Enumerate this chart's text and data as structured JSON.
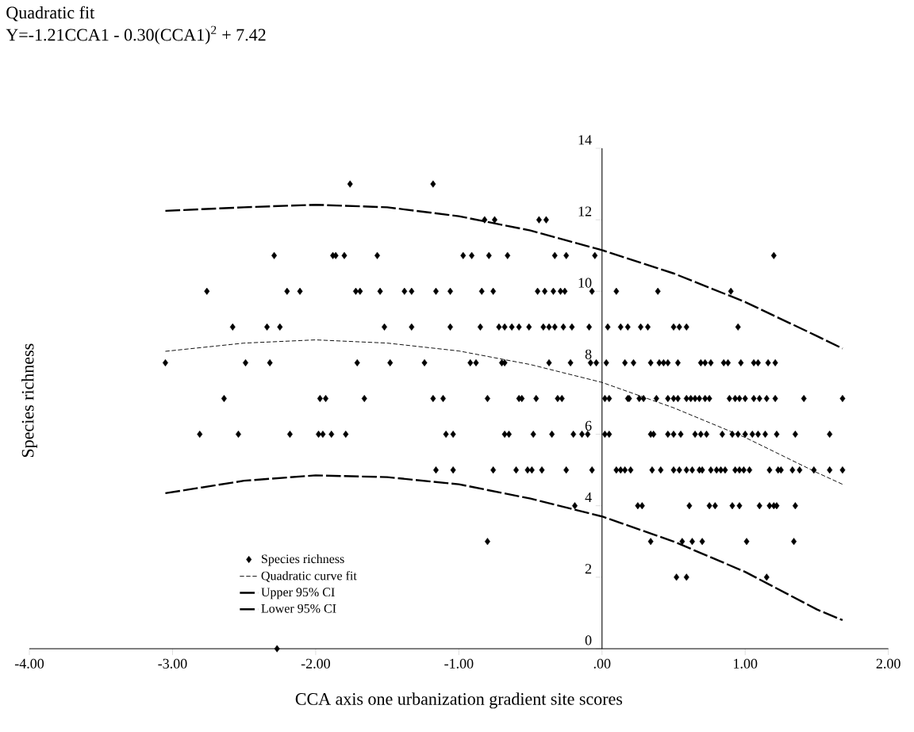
{
  "chart_data": {
    "type": "scatter",
    "title": "Quadratic fit",
    "subtitle": "Y=-1.21CCA1 - 0.30(CCA1)$^{2}$ + 7.42",
    "xlabel": "CCA axis one urbanization gradient site scores",
    "ylabel": "Species richness",
    "xlim": [
      -4,
      2
    ],
    "ylim": [
      0,
      14
    ],
    "xticks": [
      {
        "value": -4,
        "label": "-4.00"
      },
      {
        "value": -3,
        "label": "-3.00"
      },
      {
        "value": -2,
        "label": "-2.00"
      },
      {
        "value": -1,
        "label": "-1.00"
      },
      {
        "value": 0,
        "label": ".00"
      },
      {
        "value": 1,
        "label": "1.00"
      },
      {
        "value": 2,
        "label": "2.00"
      }
    ],
    "yticks": [
      0,
      2,
      4,
      6,
      8,
      10,
      12,
      14
    ],
    "marker": "diamond",
    "legend": "bottom left",
    "grid": false,
    "series": [
      {
        "name": "Species richness",
        "color": "#000000",
        "x": [
          -1.76,
          -1.18,
          -0.82,
          -0.75,
          -0.44,
          -0.39,
          -2.29,
          -1.88,
          -1.86,
          -1.8,
          -1.57,
          -0.97,
          -0.91,
          -0.79,
          -0.66,
          -0.33,
          -0.25,
          -0.05,
          1.2,
          -2.76,
          -2.2,
          -2.11,
          -1.72,
          -1.69,
          -1.55,
          -1.38,
          -1.33,
          -1.16,
          -1.06,
          -0.84,
          -0.76,
          -0.45,
          -0.4,
          -0.34,
          -0.29,
          -0.26,
          -0.07,
          0.1,
          0.39,
          0.9,
          -2.58,
          -2.34,
          -2.25,
          -1.52,
          -1.33,
          -1.06,
          -0.85,
          -0.72,
          -0.68,
          -0.63,
          -0.58,
          -0.51,
          -0.41,
          -0.37,
          -0.33,
          -0.27,
          -0.21,
          -0.09,
          0.04,
          0.13,
          0.18,
          0.27,
          0.32,
          0.5,
          0.54,
          0.59,
          0.95,
          -3.05,
          -2.49,
          -2.32,
          -1.71,
          -1.48,
          -1.24,
          -0.92,
          -0.88,
          -0.7,
          -0.68,
          -0.37,
          -0.22,
          -0.08,
          -0.04,
          0.03,
          0.16,
          0.22,
          0.34,
          0.4,
          0.43,
          0.46,
          0.53,
          0.69,
          0.72,
          0.76,
          0.85,
          0.88,
          0.97,
          1.06,
          1.09,
          1.16,
          1.21,
          -2.64,
          -1.97,
          -1.93,
          -1.66,
          -1.18,
          -1.11,
          -0.8,
          -0.58,
          -0.56,
          -0.46,
          -0.31,
          -0.28,
          0.02,
          0.05,
          0.18,
          0.19,
          0.26,
          0.29,
          0.38,
          0.46,
          0.5,
          0.53,
          0.59,
          0.62,
          0.65,
          0.68,
          0.72,
          0.75,
          0.89,
          0.93,
          0.96,
          1.0,
          1.06,
          1.1,
          1.15,
          1.21,
          1.41,
          1.68,
          -2.81,
          -2.54,
          -2.18,
          -1.98,
          -1.95,
          -1.89,
          -1.79,
          -1.09,
          -1.04,
          -0.68,
          -0.65,
          -0.48,
          -0.35,
          -0.2,
          -0.14,
          -0.1,
          0.02,
          0.05,
          0.34,
          0.36,
          0.46,
          0.5,
          0.55,
          0.65,
          0.69,
          0.73,
          0.84,
          0.91,
          0.95,
          1.0,
          1.05,
          1.09,
          1.14,
          1.22,
          1.35,
          1.59,
          -1.16,
          -1.04,
          -0.76,
          -0.6,
          -0.52,
          -0.49,
          -0.42,
          -0.25,
          -0.07,
          0.1,
          0.13,
          0.16,
          0.2,
          0.35,
          0.41,
          0.5,
          0.54,
          0.59,
          0.63,
          0.68,
          0.7,
          0.76,
          0.8,
          0.83,
          0.86,
          0.93,
          0.96,
          0.99,
          1.03,
          1.17,
          1.23,
          1.25,
          1.33,
          1.38,
          1.48,
          1.59,
          1.68,
          -0.19,
          0.25,
          0.28,
          0.61,
          0.75,
          0.79,
          0.91,
          0.96,
          1.1,
          1.17,
          1.2,
          1.22,
          1.35,
          -0.8,
          0.34,
          0.56,
          0.63,
          0.7,
          1.01,
          1.34,
          0.52,
          0.59,
          1.15,
          -2.27
        ],
        "values": [
          13,
          13,
          12,
          12,
          12,
          12,
          11,
          11,
          11,
          11,
          11,
          11,
          11,
          11,
          11,
          11,
          11,
          11,
          11,
          10,
          10,
          10,
          10,
          10,
          10,
          10,
          10,
          10,
          10,
          10,
          10,
          10,
          10,
          10,
          10,
          10,
          10,
          10,
          10,
          10,
          9,
          9,
          9,
          9,
          9,
          9,
          9,
          9,
          9,
          9,
          9,
          9,
          9,
          9,
          9,
          9,
          9,
          9,
          9,
          9,
          9,
          9,
          9,
          9,
          9,
          9,
          9,
          8,
          8,
          8,
          8,
          8,
          8,
          8,
          8,
          8,
          8,
          8,
          8,
          8,
          8,
          8,
          8,
          8,
          8,
          8,
          8,
          8,
          8,
          8,
          8,
          8,
          8,
          8,
          8,
          8,
          8,
          8,
          8,
          7,
          7,
          7,
          7,
          7,
          7,
          7,
          7,
          7,
          7,
          7,
          7,
          7,
          7,
          7,
          7,
          7,
          7,
          7,
          7,
          7,
          7,
          7,
          7,
          7,
          7,
          7,
          7,
          7,
          7,
          7,
          7,
          7,
          7,
          7,
          7,
          7,
          7,
          6,
          6,
          6,
          6,
          6,
          6,
          6,
          6,
          6,
          6,
          6,
          6,
          6,
          6,
          6,
          6,
          6,
          6,
          6,
          6,
          6,
          6,
          6,
          6,
          6,
          6,
          6,
          6,
          6,
          6,
          6,
          6,
          6,
          6,
          6,
          6,
          5,
          5,
          5,
          5,
          5,
          5,
          5,
          5,
          5,
          5,
          5,
          5,
          5,
          5,
          5,
          5,
          5,
          5,
          5,
          5,
          5,
          5,
          5,
          5,
          5,
          5,
          5,
          5,
          5,
          5,
          5,
          5,
          5,
          5,
          5,
          5,
          5,
          4,
          4,
          4,
          4,
          4,
          4,
          4,
          4,
          4,
          4,
          4,
          4,
          4,
          3,
          3,
          3,
          3,
          3,
          3,
          3,
          2,
          2,
          2,
          0
        ]
      },
      {
        "name": "Quadratic curve fit",
        "type": "line",
        "color": "#000000",
        "marker": "none",
        "line_style": "dashed",
        "x": [
          -3.05,
          -2.5,
          -2.0,
          -1.5,
          -1.0,
          -0.5,
          0.0,
          0.5,
          1.0,
          1.5,
          1.68
        ],
        "values": [
          8.32,
          8.55,
          8.64,
          8.55,
          8.33,
          7.95,
          7.45,
          6.74,
          5.91,
          4.93,
          4.6
        ]
      },
      {
        "name": "Upper 95% CI",
        "type": "line",
        "color": "#000000",
        "marker": "none",
        "line_style": "dashed",
        "x": [
          -3.05,
          -2.5,
          -2.0,
          -1.5,
          -1.0,
          -0.5,
          0.0,
          0.5,
          1.0,
          1.5,
          1.68
        ],
        "values": [
          12.25,
          12.35,
          12.42,
          12.35,
          12.1,
          11.7,
          11.15,
          10.5,
          9.7,
          8.75,
          8.4
        ]
      },
      {
        "name": "Lower 95% CI",
        "type": "line",
        "color": "#000000",
        "marker": "none",
        "line_style": "dashed",
        "x": [
          -3.05,
          -2.5,
          -2.0,
          -1.5,
          -1.0,
          -0.5,
          0.0,
          0.5,
          1.0,
          1.5,
          1.68
        ],
        "values": [
          4.35,
          4.7,
          4.85,
          4.8,
          4.6,
          4.2,
          3.7,
          3.0,
          2.15,
          1.1,
          0.8
        ]
      }
    ]
  }
}
